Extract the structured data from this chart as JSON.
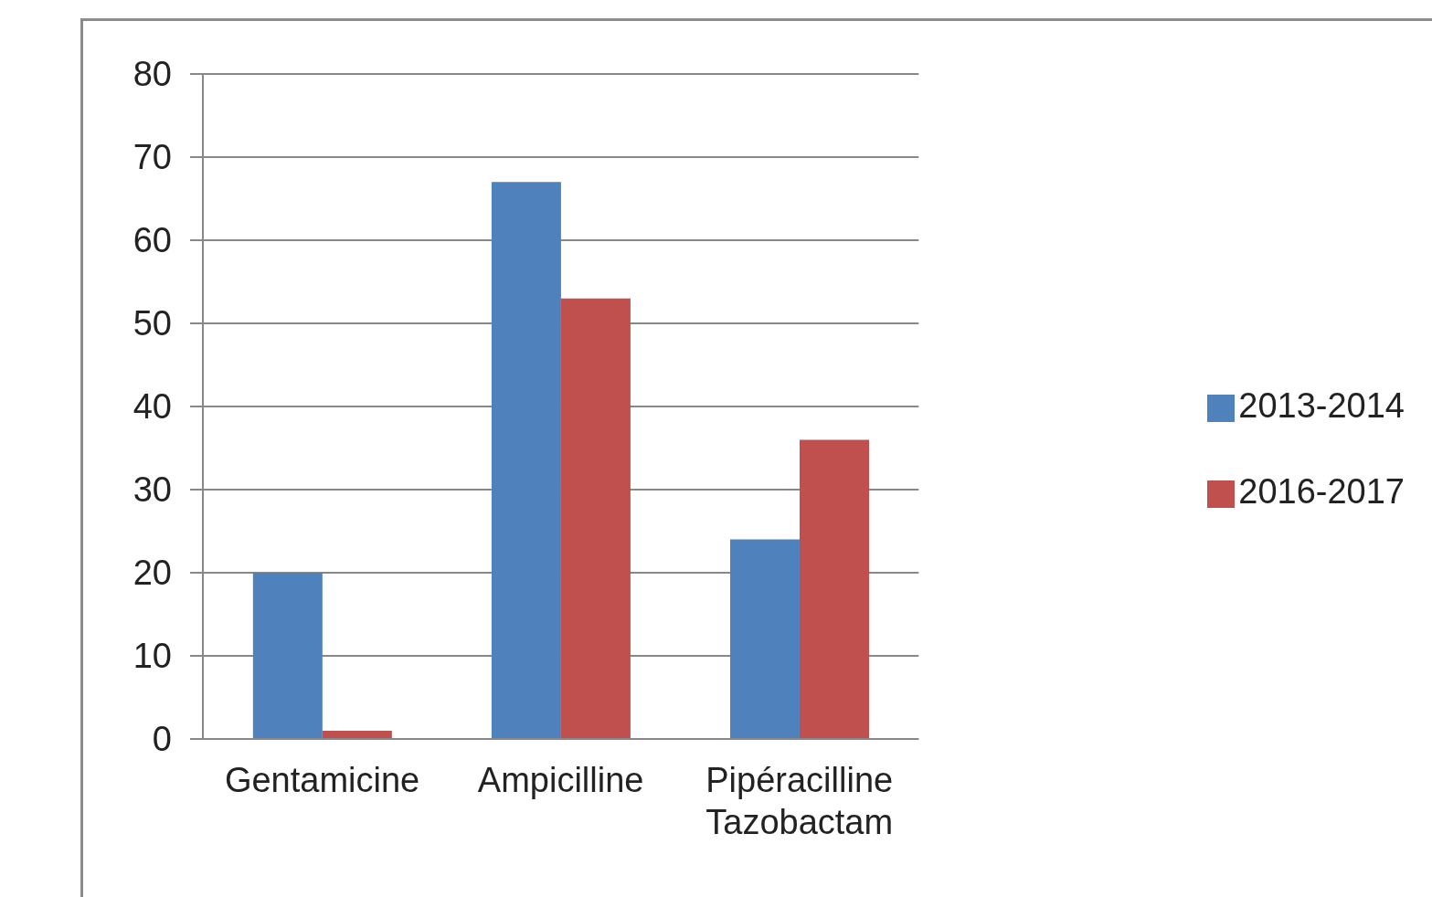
{
  "chart_data": {
    "type": "bar",
    "categories": [
      "Gentamicine",
      "Ampicilline",
      "Pipéracilline Tazobactam"
    ],
    "series": [
      {
        "name": "2013-2014",
        "color": "#4f81bd",
        "values": [
          20,
          67,
          24
        ]
      },
      {
        "name": "2016-2017",
        "color": "#c0504d",
        "values": [
          1,
          53,
          36
        ]
      }
    ],
    "ylim": [
      0,
      80
    ],
    "yticks": [
      0,
      10,
      20,
      30,
      40,
      50,
      60,
      70,
      80
    ],
    "grid": "y",
    "legend": "right"
  }
}
